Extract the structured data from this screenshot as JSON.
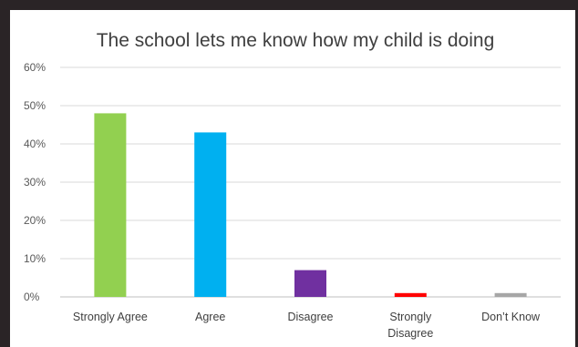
{
  "chart_data": {
    "type": "bar",
    "title": "The school lets me know how my child is doing",
    "xlabel": "",
    "ylabel": "",
    "ylim": [
      0,
      60
    ],
    "yticks": [
      {
        "value": 0,
        "label": "0%"
      },
      {
        "value": 10,
        "label": "10%"
      },
      {
        "value": 20,
        "label": "20%"
      },
      {
        "value": 30,
        "label": "30%"
      },
      {
        "value": 40,
        "label": "40%"
      },
      {
        "value": 50,
        "label": "50%"
      },
      {
        "value": 60,
        "label": "60%"
      }
    ],
    "categories": [
      [
        "Strongly Agree"
      ],
      [
        "Agree"
      ],
      [
        "Disagree"
      ],
      [
        "Strongly",
        "Disagree"
      ],
      [
        "Don’t Know"
      ]
    ],
    "values": [
      48,
      43,
      7,
      1,
      1
    ],
    "colors": [
      "#92d050",
      "#00b0f0",
      "#7030a0",
      "#ff0000",
      "#a6a6a6"
    ],
    "grid": true,
    "legend": "none"
  }
}
